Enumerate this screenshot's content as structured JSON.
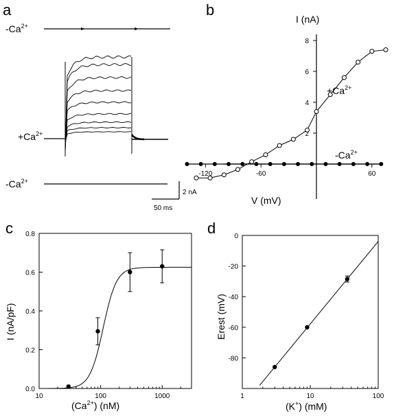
{
  "panels": {
    "a": {
      "label": "a",
      "top_label": "-Ca",
      "top_sup": "2+",
      "mid_label": "+Ca",
      "mid_sup": "2+",
      "bot_label": "-Ca",
      "bot_sup": "2+",
      "scale_y": "2 nA",
      "scale_x": "50 ms"
    },
    "b": {
      "label": "b",
      "ylabel": "I (nA)",
      "xlabel": "V (mV)",
      "series_plus": "+Ca",
      "series_plus_sup": "2+",
      "series_minus": "-Ca",
      "series_minus_sup": "2+"
    },
    "c": {
      "label": "c",
      "ylabel": "I (nA/pF)",
      "xlabel_pre": "(Ca",
      "xlabel_sup": "2+",
      "xlabel_post": ") (nM)"
    },
    "d": {
      "label": "d",
      "ylabel": "Erest (mV)",
      "xlabel_pre": "(K",
      "xlabel_sup": "+",
      "xlabel_post": ") (mM)"
    }
  },
  "chart_data": [
    {
      "panel": "b",
      "type": "scatter",
      "xlabel": "V (mV)",
      "ylabel": "I (nA)",
      "xlim": [
        -140,
        80
      ],
      "ylim": [
        -1.2,
        8.2
      ],
      "xticks": [
        -120,
        -60,
        60
      ],
      "yticks": [
        2,
        4,
        6,
        8
      ],
      "series": [
        {
          "name": "+Ca2+",
          "marker": "open-circle",
          "x": [
            -130,
            -115,
            -100,
            -85,
            -70,
            -55,
            -40,
            -25,
            -10,
            0,
            15,
            30,
            45,
            60,
            75
          ],
          "y": [
            -0.9,
            -0.9,
            -0.7,
            -0.35,
            0.15,
            0.6,
            1.2,
            1.6,
            2.2,
            3.4,
            4.5,
            5.6,
            6.6,
            7.3,
            7.4
          ]
        },
        {
          "name": "-Ca2+",
          "marker": "filled-circle",
          "x": [
            -140,
            -125,
            -110,
            -95,
            -80,
            -65,
            -50,
            -35,
            -20,
            -5,
            10,
            25,
            40,
            55,
            70
          ],
          "y": [
            0,
            0,
            0,
            0,
            0,
            0,
            0,
            0,
            0,
            0,
            0,
            0,
            0,
            0,
            0
          ]
        }
      ]
    },
    {
      "panel": "c",
      "type": "scatter",
      "xlabel": "(Ca2+) (nM)",
      "ylabel": "I (nA/pF)",
      "xscale": "log",
      "xlim": [
        10,
        3000
      ],
      "ylim": [
        0,
        0.8
      ],
      "xticks": [
        10,
        100,
        1000
      ],
      "xticklabels": [
        "10",
        "100",
        "1000"
      ],
      "yticks": [
        0,
        0.2,
        0.4,
        0.6,
        0.8
      ],
      "yticklabels": [
        "0.0",
        "0.2",
        "0.4",
        "0.6",
        "0.8"
      ],
      "points": [
        {
          "x": 30,
          "y": 0.01,
          "err": 0
        },
        {
          "x": 90,
          "y": 0.295,
          "err": 0.07
        },
        {
          "x": 300,
          "y": 0.6,
          "err": 0.1
        },
        {
          "x": 1000,
          "y": 0.63,
          "err": 0.085
        }
      ],
      "fit": {
        "kind": "hill",
        "max": 0.625,
        "k": 110,
        "n": 4
      }
    },
    {
      "panel": "d",
      "type": "scatter",
      "xlabel": "(K+) (mM)",
      "ylabel": "Erest (mV)",
      "xscale": "log",
      "xlim": [
        1,
        100
      ],
      "ylim": [
        -100,
        0
      ],
      "xticks": [
        1,
        10,
        100
      ],
      "xticklabels": [
        "1",
        "10",
        "100"
      ],
      "yticks": [
        0,
        -20,
        -40,
        -60,
        -80
      ],
      "points": [
        {
          "x": 3,
          "y": -86
        },
        {
          "x": 9,
          "y": -60
        },
        {
          "x": 35,
          "y": -28.5,
          "err": 2
        }
      ],
      "fit": {
        "kind": "line-log",
        "x1": 1.8,
        "x2": 100
      }
    }
  ]
}
